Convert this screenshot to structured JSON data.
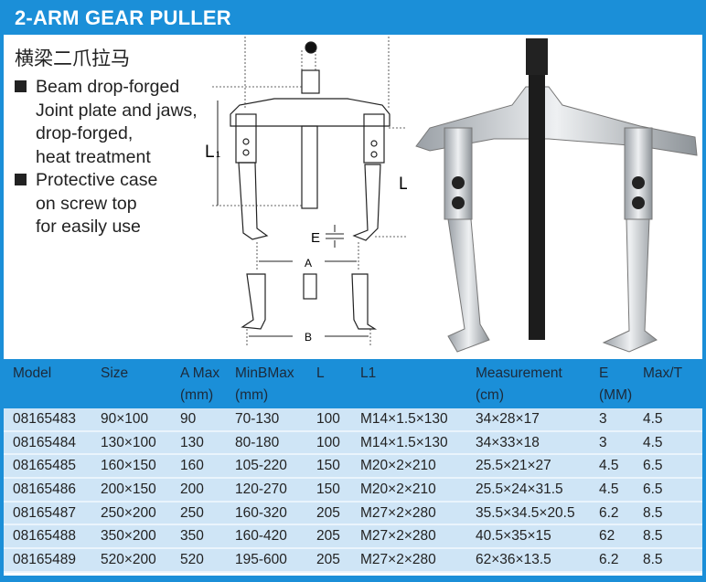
{
  "title": "2-ARM GEAR PULLER",
  "chinese_title": "横梁二爪拉马",
  "features": [
    {
      "lines": [
        "Beam drop-forged",
        "Joint plate and jaws,",
        "drop-forged,",
        "heat treatment"
      ]
    },
    {
      "lines": [
        "Protective case",
        "on screw top",
        "for easily use"
      ]
    }
  ],
  "diagram_labels": {
    "L1": "L",
    "L1_sub": "1",
    "L": "L",
    "E": "E",
    "A": "A",
    "B": "B"
  },
  "colors": {
    "brand": "#1b8fd8",
    "row": "#cfe5f6"
  },
  "table": {
    "headers": [
      [
        "Model",
        ""
      ],
      [
        "Size",
        ""
      ],
      [
        "A Max",
        "(mm)"
      ],
      [
        "MinBMax",
        "(mm)"
      ],
      [
        "L",
        ""
      ],
      [
        "L1",
        ""
      ],
      [
        "Measurement",
        "(cm)"
      ],
      [
        "E",
        "(MM)"
      ],
      [
        "Max/T",
        ""
      ]
    ],
    "rows": [
      [
        "08165483",
        "90×100",
        "90",
        "70-130",
        "100",
        "M14×1.5×130",
        "34×28×17",
        "3",
        "4.5"
      ],
      [
        "08165484",
        "130×100",
        "130",
        "80-180",
        "100",
        "M14×1.5×130",
        "34×33×18",
        "3",
        "4.5"
      ],
      [
        "08165485",
        "160×150",
        "160",
        "105-220",
        "150",
        "M20×2×210",
        "25.5×21×27",
        "4.5",
        "6.5"
      ],
      [
        "08165486",
        "200×150",
        "200",
        "120-270",
        "150",
        "M20×2×210",
        "25.5×24×31.5",
        "4.5",
        "6.5"
      ],
      [
        "08165487",
        "250×200",
        "250",
        "160-320",
        "205",
        "M27×2×280",
        "35.5×34.5×20.5",
        "6.2",
        "8.5"
      ],
      [
        "08165488",
        "350×200",
        "350",
        "160-420",
        "205",
        "M27×2×280",
        "40.5×35×15",
        "62",
        "8.5"
      ],
      [
        "08165489",
        "520×200",
        "520",
        "195-600",
        "205",
        "M27×2×280",
        "62×36×13.5",
        "6.2",
        "8.5"
      ]
    ]
  }
}
